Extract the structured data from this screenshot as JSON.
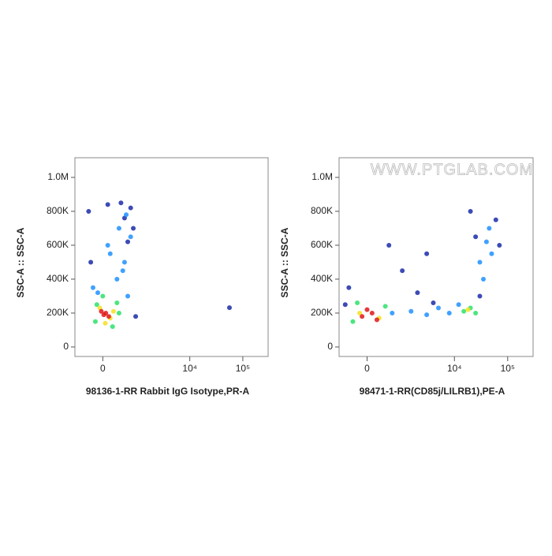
{
  "chart_data": [
    {
      "type": "scatter",
      "xscale": "biexponential",
      "ylabel": "SSC-A :: SSC-A",
      "xlabel": "98136-1-RR Rabbit IgG Isotype,PR-A",
      "xlim": [
        -700,
        300000
      ],
      "ylim": [
        -56000,
        1116000
      ],
      "xticks": [
        0,
        {
          "value": 10000,
          "label": "10⁴"
        },
        {
          "value": 100000,
          "label": "10⁵"
        }
      ],
      "yticks": [
        0,
        {
          "value": 200000,
          "label": "200K"
        },
        {
          "value": 400000,
          "label": "400K"
        },
        {
          "value": 600000,
          "label": "600K"
        },
        {
          "value": 800000,
          "label": "800K"
        },
        {
          "value": 1000000,
          "label": "1.0M"
        }
      ],
      "series": [
        {
          "color": "#1a2ca8",
          "x": [
            -300,
            700,
            800,
            400,
            -250,
            900,
            56000,
            500,
            100,
            600
          ],
          "y": [
            800000,
            820000,
            700000,
            850000,
            500000,
            180000,
            232000,
            760000,
            840000,
            620000
          ]
        },
        {
          "color": "#1e90ff",
          "x": [
            300,
            500,
            -200,
            100,
            700,
            350,
            550,
            150,
            450,
            600,
            -100
          ],
          "y": [
            400000,
            500000,
            350000,
            600000,
            650000,
            700000,
            780000,
            550000,
            450000,
            300000,
            320000
          ]
        },
        {
          "color": "#2ee06a",
          "x": [
            -150,
            300,
            0,
            200,
            -120,
            350
          ],
          "y": [
            150000,
            260000,
            300000,
            120000,
            250000,
            200000
          ]
        },
        {
          "color": "#f5e020",
          "x": [
            -60,
            150,
            50,
            220
          ],
          "y": [
            230000,
            170000,
            140000,
            210000
          ]
        },
        {
          "color": "#e01818",
          "x": [
            60,
            120,
            -30,
            20
          ],
          "y": [
            200000,
            180000,
            210000,
            190000
          ]
        }
      ]
    },
    {
      "type": "scatter",
      "xscale": "biexponential",
      "annotation": "WWW.PTGLAB.COM",
      "ylabel": "SSC-A :: SSC-A",
      "xlabel": "98471-1-RR(CD85j/LILRB1),PE-A",
      "xlim": [
        -700,
        300000
      ],
      "ylim": [
        -56000,
        1116000
      ],
      "xticks": [
        0,
        {
          "value": 10000,
          "label": "10⁴"
        },
        {
          "value": 100000,
          "label": "10⁵"
        }
      ],
      "yticks": [
        0,
        {
          "value": 200000,
          "label": "200K"
        },
        {
          "value": 400000,
          "label": "400K"
        },
        {
          "value": 600000,
          "label": "600K"
        },
        {
          "value": 800000,
          "label": "800K"
        },
        {
          "value": 1000000,
          "label": "1.0M"
        }
      ],
      "series": [
        {
          "color": "#1a2ca8",
          "x": [
            -400,
            1000,
            2000,
            4000,
            20000,
            60000,
            25000,
            70000,
            30000,
            3000,
            -500,
            500
          ],
          "y": [
            350000,
            450000,
            320000,
            260000,
            800000,
            750000,
            650000,
            600000,
            300000,
            550000,
            250000,
            600000
          ]
        },
        {
          "color": "#1e90ff",
          "x": [
            600,
            1500,
            3000,
            5000,
            8000,
            12000,
            30000,
            40000,
            35000,
            50000,
            45000
          ],
          "y": [
            200000,
            210000,
            190000,
            230000,
            200000,
            250000,
            500000,
            620000,
            400000,
            550000,
            700000
          ]
        },
        {
          "color": "#2ee06a",
          "x": [
            -300,
            400,
            -200,
            15000,
            20000,
            25000
          ],
          "y": [
            150000,
            240000,
            260000,
            210000,
            230000,
            200000
          ]
        },
        {
          "color": "#f5e020",
          "x": [
            -150,
            250,
            18000
          ],
          "y": [
            200000,
            170000,
            220000
          ]
        },
        {
          "color": "#e01818",
          "x": [
            -100,
            100,
            200,
            0
          ],
          "y": [
            180000,
            200000,
            160000,
            220000
          ]
        }
      ]
    }
  ]
}
